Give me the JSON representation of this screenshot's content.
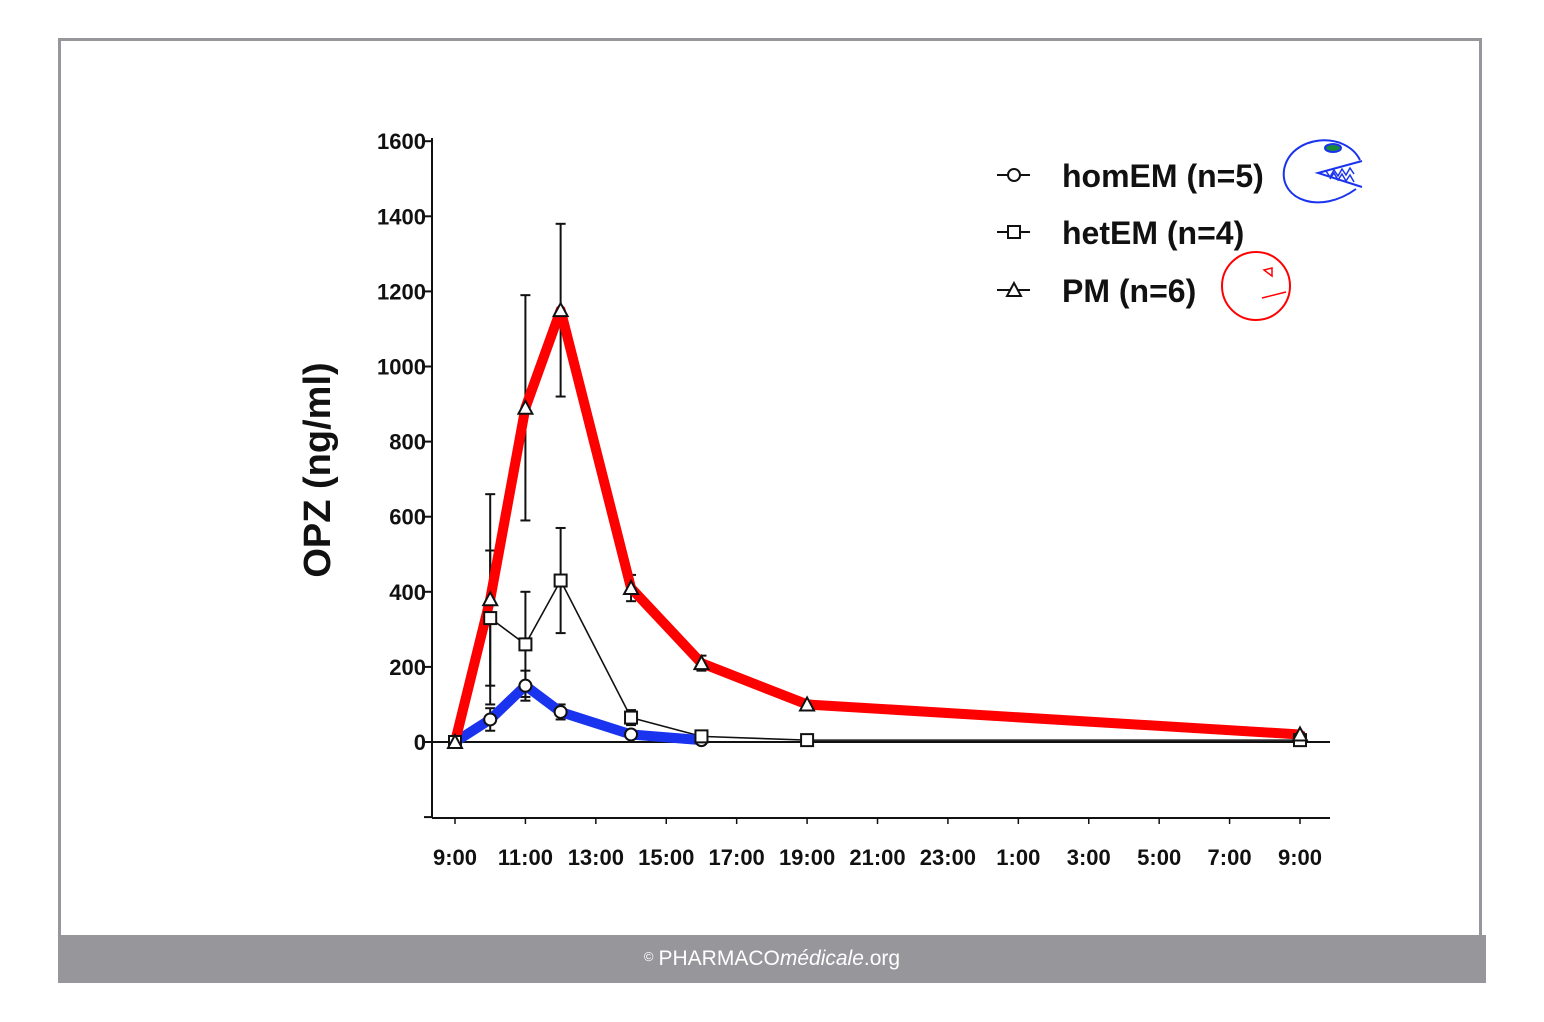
{
  "chart_data": {
    "type": "line",
    "title": "",
    "ylabel": "OPZ (ng/ml)",
    "xlabel": "",
    "x_tick_labels": [
      "9:00",
      "11:00",
      "13:00",
      "15:00",
      "17:00",
      "19:00",
      "21:00",
      "23:00",
      "1:00",
      "3:00",
      "5:00",
      "7:00",
      "9:00"
    ],
    "y_tick_labels": [
      "0",
      "200",
      "400",
      "600",
      "800",
      "1000",
      "1200",
      "1400",
      "1600"
    ],
    "ylim": [
      -200,
      1600
    ],
    "xlim": [
      9,
      33
    ],
    "legend_position": "top-right",
    "grid": false,
    "series": [
      {
        "name": "homEM (n=5)",
        "marker": "circle",
        "color": "#111111",
        "highlight_color": "#1a33ee",
        "x": [
          9,
          10,
          11,
          12,
          14,
          16
        ],
        "y": [
          0,
          60,
          150,
          80,
          20,
          5
        ],
        "error": [
          0,
          30,
          40,
          20,
          10,
          3
        ]
      },
      {
        "name": "hetEM (n=4)",
        "marker": "square",
        "color": "#111111",
        "x": [
          9,
          10,
          11,
          12,
          14,
          16,
          19,
          33
        ],
        "y": [
          0,
          330,
          260,
          430,
          65,
          15,
          5,
          5
        ],
        "error": [
          0,
          180,
          140,
          140,
          20,
          10,
          5,
          5
        ]
      },
      {
        "name": "PM (n=6)",
        "marker": "triangle",
        "color": "#111111",
        "highlight_color": "#ff0000",
        "x": [
          9,
          10,
          11,
          12,
          14,
          16,
          19,
          33
        ],
        "y": [
          0,
          380,
          890,
          1150,
          410,
          210,
          100,
          20
        ],
        "error": [
          0,
          280,
          300,
          230,
          35,
          20,
          10,
          5
        ]
      }
    ],
    "legend_doodles": [
      {
        "series": "homEM (n=5)",
        "color": "#1a33ee"
      },
      {
        "series": "PM (n=6)",
        "color": "#ff0000"
      }
    ]
  },
  "footer": {
    "copyright": "©",
    "brand_upper": "PHARMACO",
    "brand_italic": "médicale",
    "brand_tld": ".org"
  }
}
